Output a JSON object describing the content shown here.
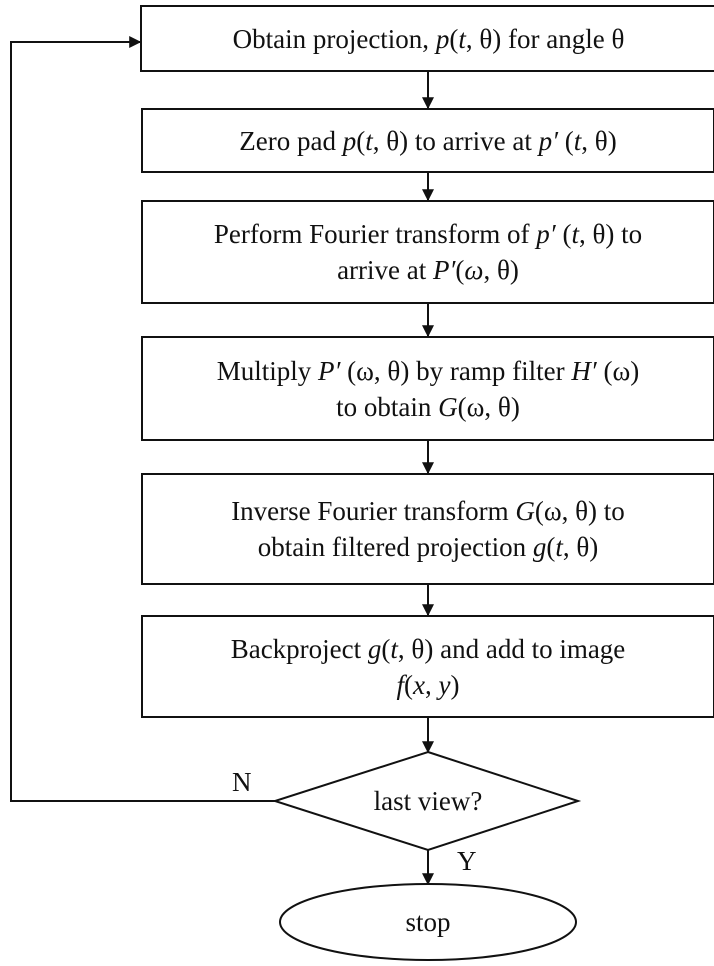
{
  "steps": [
    {
      "id": "obtain",
      "lines": [
        [
          {
            "t": "Obtain projection, "
          },
          {
            "t": "p",
            "i": true
          },
          {
            "t": "("
          },
          {
            "t": "t",
            "i": true
          },
          {
            "t": ", θ) for angle θ"
          }
        ]
      ]
    },
    {
      "id": "zero-pad",
      "lines": [
        [
          {
            "t": "Zero pad "
          },
          {
            "t": "p",
            "i": true
          },
          {
            "t": "("
          },
          {
            "t": "t",
            "i": true
          },
          {
            "t": ", θ) to arrive at "
          },
          {
            "t": "p′",
            "i": true
          },
          {
            "t": " ("
          },
          {
            "t": "t",
            "i": true
          },
          {
            "t": ", θ)"
          }
        ]
      ]
    },
    {
      "id": "fourier",
      "lines": [
        [
          {
            "t": "Perform Fourier transform of "
          },
          {
            "t": "p′",
            "i": true
          },
          {
            "t": " ("
          },
          {
            "t": "t",
            "i": true
          },
          {
            "t": ", θ) to"
          }
        ],
        [
          {
            "t": "arrive at "
          },
          {
            "t": "P′",
            "i": true
          },
          {
            "t": "("
          },
          {
            "t": "ω",
            "i": true
          },
          {
            "t": ", θ)"
          }
        ]
      ]
    },
    {
      "id": "multiply",
      "lines": [
        [
          {
            "t": "Multiply "
          },
          {
            "t": "P′",
            "i": true
          },
          {
            "t": " (ω, θ) by ramp filter "
          },
          {
            "t": "H′",
            "i": true
          },
          {
            "t": " (ω)"
          }
        ],
        [
          {
            "t": "to obtain "
          },
          {
            "t": "G",
            "i": true
          },
          {
            "t": "(ω, θ)"
          }
        ]
      ]
    },
    {
      "id": "inverse",
      "lines": [
        [
          {
            "t": "Inverse Fourier transform "
          },
          {
            "t": "G",
            "i": true
          },
          {
            "t": "(ω, θ) to"
          }
        ],
        [
          {
            "t": "obtain filtered projection "
          },
          {
            "t": "g",
            "i": true
          },
          {
            "t": "("
          },
          {
            "t": "t",
            "i": true
          },
          {
            "t": ", θ)"
          }
        ]
      ]
    },
    {
      "id": "backproject",
      "lines": [
        [
          {
            "t": "Backproject "
          },
          {
            "t": "g",
            "i": true
          },
          {
            "t": "("
          },
          {
            "t": "t",
            "i": true
          },
          {
            "t": ", θ) and add to image"
          }
        ],
        [
          {
            "t": "f",
            "i": true
          },
          {
            "t": "("
          },
          {
            "t": "x",
            "i": true
          },
          {
            "t": ", "
          },
          {
            "t": "y",
            "i": true
          },
          {
            "t": ")"
          }
        ]
      ]
    }
  ],
  "decision": {
    "label": "last view?"
  },
  "terminal": {
    "label": "stop"
  },
  "edges": {
    "no_label": "N",
    "yes_label": "Y"
  }
}
